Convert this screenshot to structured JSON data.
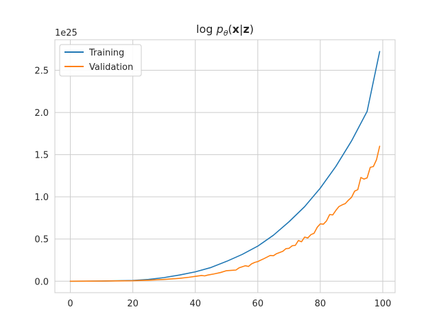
{
  "chart_data": {
    "type": "line",
    "title": "log p_θ(x|z)",
    "title_parts": {
      "prefix": "log ",
      "p": "p",
      "sub": "θ",
      "open": "(",
      "x": "x",
      "bar": "|",
      "z": "z",
      "close": ")"
    },
    "xlabel": "",
    "ylabel": "",
    "y_scale_label": "1e25",
    "xlim": [
      -4.95,
      103.95
    ],
    "ylim": [
      -0.136,
      2.862
    ],
    "xticks": [
      0,
      20,
      40,
      60,
      80,
      100
    ],
    "xtick_labels": [
      "0",
      "20",
      "40",
      "60",
      "80",
      "100"
    ],
    "yticks": [
      0.0,
      0.5,
      1.0,
      1.5,
      2.0,
      2.5
    ],
    "ytick_labels": [
      "0.0",
      "0.5",
      "1.0",
      "1.5",
      "2.0",
      "2.5"
    ],
    "grid": true,
    "legend_position": "top-left",
    "series": [
      {
        "name": "Training",
        "color": "#1f77b4",
        "x": [
          0,
          10,
          20,
          25,
          30,
          35,
          40,
          45,
          50,
          55,
          60,
          65,
          70,
          75,
          80,
          85,
          90,
          95,
          99
        ],
        "values": [
          0.0,
          0.001,
          0.009,
          0.021,
          0.043,
          0.074,
          0.111,
          0.162,
          0.235,
          0.317,
          0.416,
          0.545,
          0.705,
          0.884,
          1.103,
          1.361,
          1.663,
          2.013,
          2.722
        ]
      },
      {
        "name": "Validation",
        "color": "#ff7f0e",
        "x": [
          0,
          10,
          20,
          25,
          30,
          35,
          38,
          40,
          42,
          43,
          44,
          46,
          48,
          50,
          52,
          53,
          54,
          56,
          57,
          58,
          59,
          60,
          62,
          64,
          65,
          66,
          68,
          69,
          70,
          71,
          72,
          73,
          74,
          75,
          76,
          77,
          78,
          79,
          80,
          81,
          82,
          83,
          84,
          85,
          86,
          87,
          88,
          89,
          90,
          91,
          92,
          93,
          94,
          95,
          96,
          97,
          98,
          99
        ],
        "values": [
          0.0,
          0.001,
          0.005,
          0.012,
          0.021,
          0.034,
          0.047,
          0.057,
          0.068,
          0.063,
          0.073,
          0.087,
          0.102,
          0.125,
          0.13,
          0.132,
          0.158,
          0.183,
          0.175,
          0.205,
          0.222,
          0.233,
          0.268,
          0.305,
          0.302,
          0.326,
          0.355,
          0.386,
          0.39,
          0.42,
          0.425,
          0.482,
          0.468,
          0.523,
          0.512,
          0.552,
          0.568,
          0.638,
          0.68,
          0.676,
          0.715,
          0.79,
          0.785,
          0.84,
          0.885,
          0.905,
          0.92,
          0.96,
          0.994,
          1.067,
          1.085,
          1.23,
          1.21,
          1.225,
          1.35,
          1.359,
          1.44,
          1.6
        ]
      }
    ]
  }
}
